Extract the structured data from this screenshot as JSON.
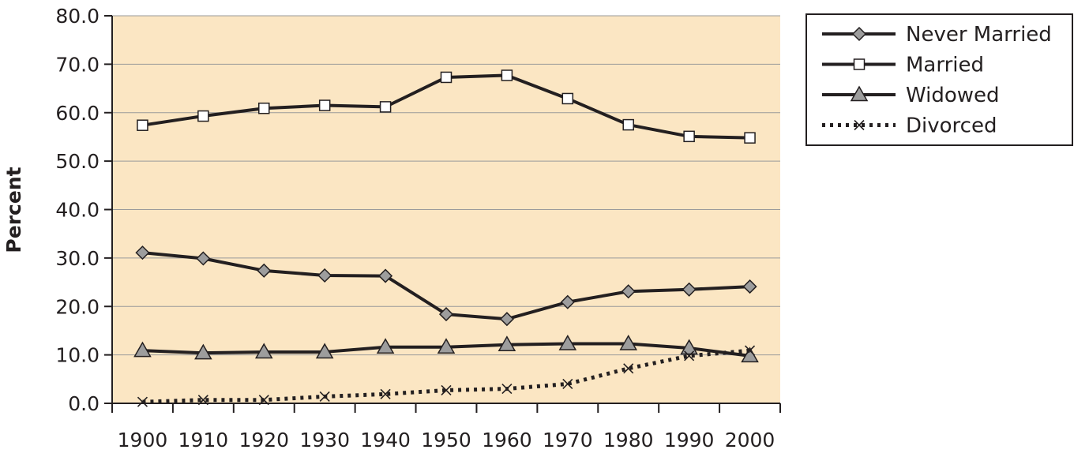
{
  "chart_data": {
    "type": "line",
    "title": "",
    "xlabel": "",
    "ylabel": "Percent",
    "x": [
      1900,
      1910,
      1920,
      1930,
      1940,
      1950,
      1960,
      1970,
      1980,
      1990,
      2000
    ],
    "x_tick_labels": [
      "1900",
      "1910",
      "1920",
      "1930",
      "1940",
      "1950",
      "1960",
      "1970",
      "1980",
      "1990",
      "2000"
    ],
    "ylim": [
      0,
      80
    ],
    "y_ticks": [
      0,
      10,
      20,
      30,
      40,
      50,
      60,
      70,
      80
    ],
    "y_tick_labels": [
      "0.0",
      "10.0",
      "20.0",
      "30.0",
      "40.0",
      "50.0",
      "60.0",
      "70.0",
      "80.0"
    ],
    "grid": "horizontal",
    "legend_position": "top-right",
    "plot_background": "#fbe6c3",
    "line_color": "#231f20",
    "series": [
      {
        "name": "Never Married",
        "marker": "diamond",
        "marker_fill": "#9d9d9d",
        "line_style": "solid",
        "values": [
          31.1,
          29.9,
          27.4,
          26.4,
          26.3,
          18.4,
          17.4,
          20.9,
          23.1,
          23.5,
          24.1
        ]
      },
      {
        "name": "Married",
        "marker": "square",
        "marker_fill": "#ffffff",
        "line_style": "solid",
        "values": [
          57.4,
          59.3,
          60.9,
          61.5,
          61.2,
          67.3,
          67.7,
          62.9,
          57.5,
          55.1,
          54.8
        ]
      },
      {
        "name": "Widowed",
        "marker": "triangle",
        "marker_fill": "#9d9d9d",
        "line_style": "solid",
        "values": [
          10.9,
          10.4,
          10.6,
          10.6,
          11.6,
          11.6,
          12.1,
          12.3,
          12.3,
          11.4,
          9.8
        ]
      },
      {
        "name": "Divorced",
        "marker": "x",
        "marker_fill": "#231f20",
        "line_style": "dotted",
        "values": [
          0.3,
          0.7,
          0.7,
          1.4,
          1.9,
          2.7,
          3.0,
          4.0,
          7.2,
          9.8,
          10.9
        ]
      }
    ]
  }
}
